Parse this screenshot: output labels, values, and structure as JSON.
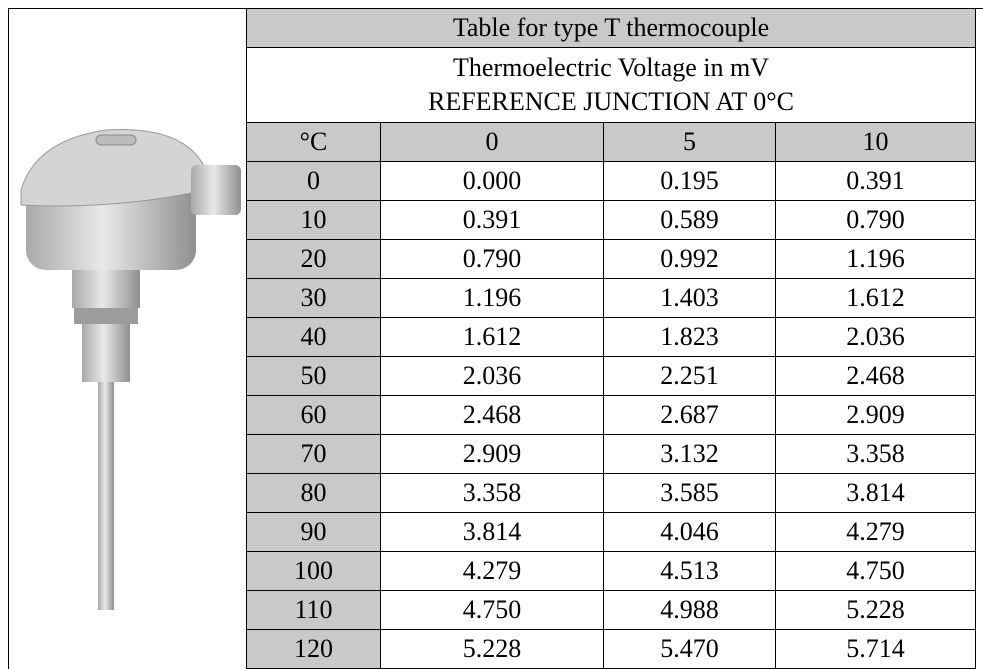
{
  "table": {
    "title": "Table for type T  thermocouple",
    "subtitle": [
      "Thermoelectric Voltage in mV",
      "REFERENCE JUNCTION AT 0°C"
    ],
    "header": [
      "°C",
      "0",
      "5",
      "10"
    ],
    "rows": [
      [
        "0",
        "0.000",
        "0.195",
        "0.391"
      ],
      [
        "10",
        "0.391",
        "0.589",
        "0.790"
      ],
      [
        "20",
        "0.790",
        "0.992",
        "1.196"
      ],
      [
        "30",
        "1.196",
        "1.403",
        "1.612"
      ],
      [
        "40",
        "1.612",
        "1.823",
        "2.036"
      ],
      [
        "50",
        "2.036",
        "2.251",
        "2.468"
      ],
      [
        "60",
        "2.468",
        "2.687",
        "2.909"
      ],
      [
        "70",
        "2.909",
        "3.132",
        "3.358"
      ],
      [
        "80",
        "3.358",
        "3.585",
        "3.814"
      ],
      [
        "90",
        "3.814",
        "4.046",
        "4.279"
      ],
      [
        "100",
        "4.279",
        "4.513",
        "4.750"
      ],
      [
        "110",
        "4.750",
        "4.988",
        "5.228"
      ],
      [
        "120",
        "5.228",
        "5.470",
        "5.714"
      ]
    ]
  }
}
